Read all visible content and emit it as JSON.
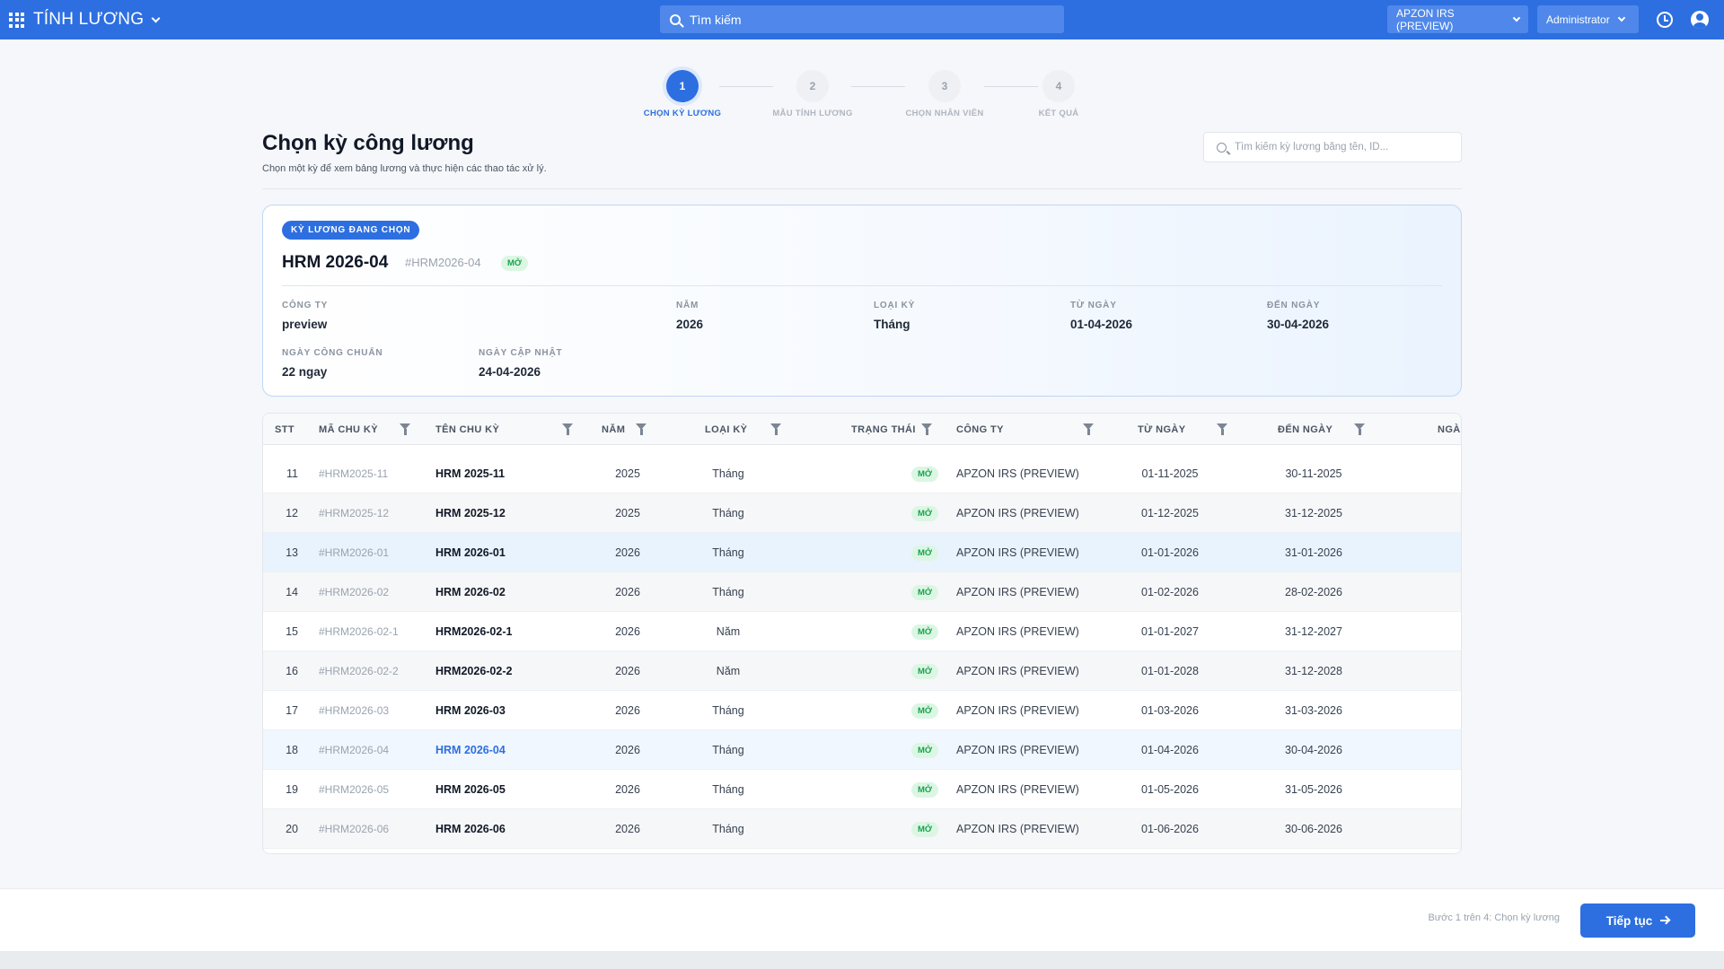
{
  "topbar": {
    "app_title": "TÍNH LƯƠNG",
    "search_placeholder": "Tìm kiếm",
    "company": "APZON IRS (PREVIEW)",
    "user": "Administrator",
    "accent_color": "#2d6fe0"
  },
  "stepper": {
    "steps": [
      {
        "number": "1",
        "label": "CHỌN KỲ LƯƠNG",
        "state": "active"
      },
      {
        "number": "2",
        "label": "MẪU TÍNH LƯƠNG",
        "state": "todo"
      },
      {
        "number": "3",
        "label": "CHỌN NHÂN VIÊN",
        "state": "todo"
      },
      {
        "number": "4",
        "label": "KẾT QUẢ",
        "state": "todo"
      }
    ]
  },
  "heading": {
    "title": "Chọn kỳ công lương",
    "subtitle": "Chọn một kỳ để xem bảng lương và thực hiện các thao tác xử lý.",
    "search_placeholder": "Tìm kiếm kỳ lương bằng tên, ID..."
  },
  "selected": {
    "badge": "KỲ LƯƠNG ĐANG CHỌN",
    "name": "HRM 2026-04",
    "code": "#HRM2026-04",
    "status": "MỞ",
    "fields": {
      "company_label": "CÔNG TY",
      "company": "preview",
      "year_label": "NĂM",
      "year": "2026",
      "type_label": "LOẠI KỲ",
      "type": "Tháng",
      "from_label": "TỪ NGÀY",
      "from": "01-04-2026",
      "to_label": "ĐẾN NGÀY",
      "to": "30-04-2026",
      "std_days_label": "NGÀY CÔNG CHUẨN",
      "std_days": "22 ngay",
      "updated_label": "NGÀY CẬP NHẬT",
      "updated": "24-04-2026"
    }
  },
  "table": {
    "headers": {
      "stt": "STT",
      "code": "MÃ CHU KỲ",
      "name": "TÊN CHU KỲ",
      "year": "NĂM",
      "type": "LOẠI KỲ",
      "status": "TRẠNG THÁI",
      "company": "CÔNG TY",
      "from": "TỪ NGÀY",
      "to": "ĐẾN NGÀY",
      "updated": "NGÀ"
    },
    "rows": [
      {
        "stt": "11",
        "code": "#HRM2025-11",
        "name": "HRM 2025-11",
        "year": "2025",
        "type": "Tháng",
        "status": "MỞ",
        "company": "APZON IRS (PREVIEW)",
        "from": "01-11-2025",
        "to": "30-11-2025",
        "state": "normal"
      },
      {
        "stt": "12",
        "code": "#HRM2025-12",
        "name": "HRM 2025-12",
        "year": "2025",
        "type": "Tháng",
        "status": "MỞ",
        "company": "APZON IRS (PREVIEW)",
        "from": "01-12-2025",
        "to": "31-12-2025",
        "state": "alt"
      },
      {
        "stt": "13",
        "code": "#HRM2026-01",
        "name": "HRM 2026-01",
        "year": "2026",
        "type": "Tháng",
        "status": "MỞ",
        "company": "APZON IRS (PREVIEW)",
        "from": "01-01-2026",
        "to": "31-01-2026",
        "state": "hover"
      },
      {
        "stt": "14",
        "code": "#HRM2026-02",
        "name": "HRM 2026-02",
        "year": "2026",
        "type": "Tháng",
        "status": "MỞ",
        "company": "APZON IRS (PREVIEW)",
        "from": "01-02-2026",
        "to": "28-02-2026",
        "state": "alt"
      },
      {
        "stt": "15",
        "code": "#HRM2026-02-1",
        "name": "HRM2026-02-1",
        "year": "2026",
        "type": "Năm",
        "status": "MỞ",
        "company": "APZON IRS (PREVIEW)",
        "from": "01-01-2027",
        "to": "31-12-2027",
        "state": "normal"
      },
      {
        "stt": "16",
        "code": "#HRM2026-02-2",
        "name": "HRM2026-02-2",
        "year": "2026",
        "type": "Năm",
        "status": "MỞ",
        "company": "APZON IRS (PREVIEW)",
        "from": "01-01-2028",
        "to": "31-12-2028",
        "state": "alt"
      },
      {
        "stt": "17",
        "code": "#HRM2026-03",
        "name": "HRM 2026-03",
        "year": "2026",
        "type": "Tháng",
        "status": "MỞ",
        "company": "APZON IRS (PREVIEW)",
        "from": "01-03-2026",
        "to": "31-03-2026",
        "state": "normal"
      },
      {
        "stt": "18",
        "code": "#HRM2026-04",
        "name": "HRM 2026-04",
        "year": "2026",
        "type": "Tháng",
        "status": "MỞ",
        "company": "APZON IRS (PREVIEW)",
        "from": "01-04-2026",
        "to": "30-04-2026",
        "state": "selected"
      },
      {
        "stt": "19",
        "code": "#HRM2026-05",
        "name": "HRM 2026-05",
        "year": "2026",
        "type": "Tháng",
        "status": "MỞ",
        "company": "APZON IRS (PREVIEW)",
        "from": "01-05-2026",
        "to": "31-05-2026",
        "state": "normal"
      },
      {
        "stt": "20",
        "code": "#HRM2026-06",
        "name": "HRM 2026-06",
        "year": "2026",
        "type": "Tháng",
        "status": "MỞ",
        "company": "APZON IRS (PREVIEW)",
        "from": "01-06-2026",
        "to": "30-06-2026",
        "state": "alt"
      }
    ]
  },
  "footer": {
    "hint": "Bước 1 trên 4: Chọn kỳ lương",
    "next_label": "Tiếp tục"
  }
}
